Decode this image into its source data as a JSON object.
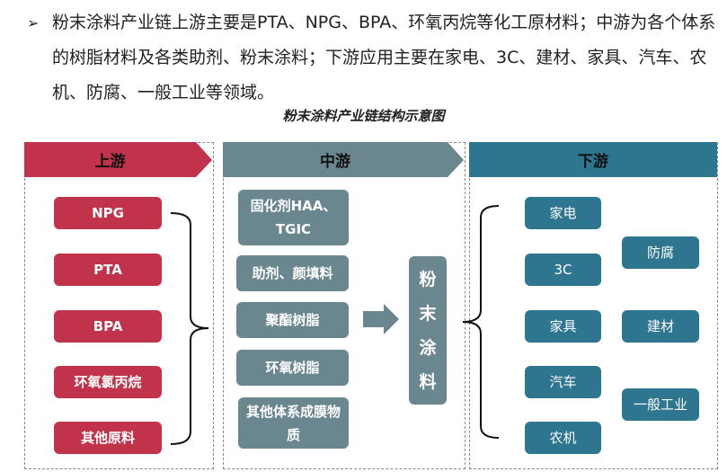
{
  "intro": {
    "bullet": "➢",
    "text": "粉末涂料产业链上游主要是PTA、NPG、BPA、环氧丙烷等化工原材料；中游为各个体系的树脂材料及各类助剂、粉末涂料；下游应用主要在家电、3C、建材、家具、汽车、农机、防腐、一般工业等领域。"
  },
  "title": "粉末涂料产业链结构示意图",
  "upstream": {
    "label": "上游",
    "items": [
      "NPG",
      "PTA",
      "BPA",
      "环氧氯丙烷",
      "其他原料"
    ]
  },
  "midstream": {
    "label": "中游",
    "items": [
      "固化剂HAA、TGIC",
      "助剂、颜填料",
      "聚酯树脂",
      "环氧树脂",
      "其他体系成膜物质"
    ],
    "product": "粉末涂料"
  },
  "downstream": {
    "label": "下游",
    "col1": [
      "家电",
      "3C",
      "家具",
      "汽车",
      "农机"
    ],
    "col2": [
      "防腐",
      "建材",
      "一般工业"
    ]
  },
  "colors": {
    "upstream": "#c0334a",
    "midstream": "#6a868e",
    "downstream": "#2e7590"
  }
}
